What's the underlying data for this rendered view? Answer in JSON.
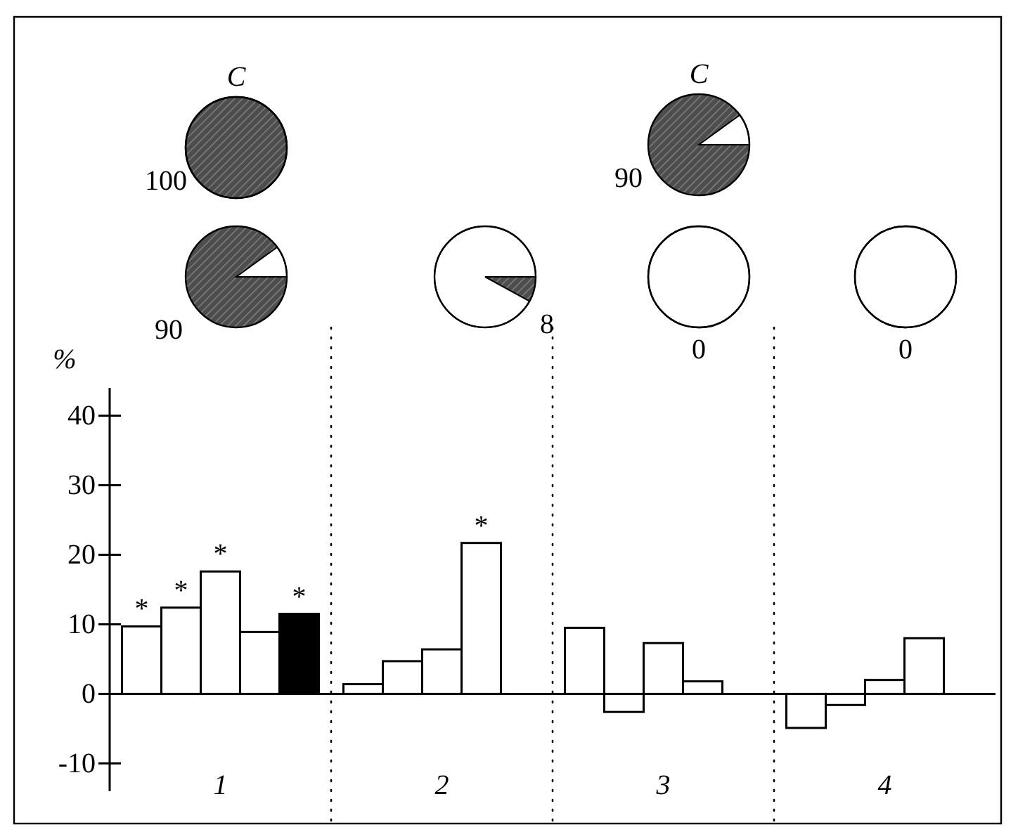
{
  "chart_data": [
    {
      "type": "pie",
      "title": "C",
      "categories": [
        null,
        null
      ],
      "values": [
        100,
        0
      ],
      "colors": [
        "#4d4d4d",
        "#ffffff"
      ],
      "value_labels": [
        "100",
        null
      ]
    },
    {
      "type": "pie",
      "title": "C",
      "categories": [
        null,
        null
      ],
      "values": [
        90,
        10
      ],
      "colors": [
        "#4d4d4d",
        "#ffffff"
      ],
      "value_labels": [
        "90",
        null
      ]
    },
    {
      "type": "pie",
      "categories": [
        null,
        null
      ],
      "values": [
        90,
        10
      ],
      "colors": [
        "#4d4d4d",
        "#ffffff"
      ],
      "value_labels": [
        "90",
        null
      ]
    },
    {
      "type": "pie",
      "categories": [
        null,
        null
      ],
      "values": [
        8,
        92
      ],
      "colors": [
        "#4d4d4d",
        "#ffffff"
      ],
      "value_labels": [
        "8",
        null
      ]
    },
    {
      "type": "pie",
      "categories": [
        null,
        null
      ],
      "values": [
        0,
        100
      ],
      "colors": [
        "#4d4d4d",
        "#ffffff"
      ],
      "value_labels": [
        "0",
        null
      ]
    },
    {
      "type": "pie",
      "categories": [
        null,
        null
      ],
      "values": [
        0,
        100
      ],
      "colors": [
        "#4d4d4d",
        "#ffffff"
      ],
      "value_labels": [
        "0",
        null
      ]
    },
    {
      "type": "bar",
      "categories": [
        "1",
        "2",
        "3",
        "4"
      ],
      "ylabel": "%",
      "ylim": [
        -14,
        44
      ],
      "yticks": [
        -10,
        0,
        10,
        20,
        30,
        40
      ],
      "grid": false,
      "series": [
        {
          "color": "#ffffff",
          "values": [
            9.7,
            1.4,
            9.5,
            -4.9
          ],
          "value_labels": [
            "*",
            null,
            null,
            null
          ]
        },
        {
          "color": "#ffffff",
          "values": [
            12.4,
            4.7,
            -2.6,
            -1.6
          ],
          "value_labels": [
            "*",
            null,
            null,
            null
          ]
        },
        {
          "color": "#ffffff",
          "values": [
            17.6,
            6.4,
            7.3,
            2.0
          ],
          "value_labels": [
            "*",
            null,
            null,
            null
          ]
        },
        {
          "color": "#ffffff",
          "values": [
            8.9,
            21.7,
            1.8,
            8.0
          ],
          "value_labels": [
            null,
            "*",
            null,
            null
          ]
        },
        {
          "color": "#000000",
          "values": [
            11.5,
            null,
            null,
            null
          ],
          "value_labels": [
            "*",
            null,
            null,
            null
          ]
        }
      ]
    }
  ]
}
